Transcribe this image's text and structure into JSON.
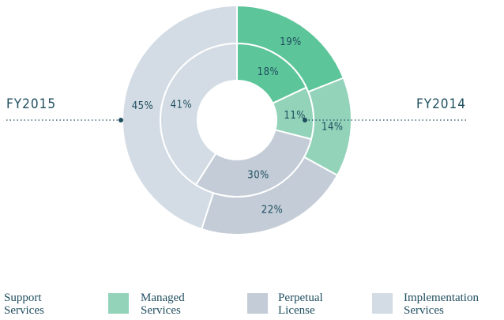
{
  "chart_data": {
    "type": "donut",
    "categories": [
      "Support Services",
      "Managed Services",
      "Perpetual License",
      "Implementation Services"
    ],
    "colors": [
      "#5dc59a",
      "#93d3b9",
      "#c3ccd7",
      "#d3dce4"
    ],
    "series": [
      {
        "name": "FY2015",
        "values": [
          19,
          14,
          22,
          45
        ],
        "value_labels": [
          "19%",
          "14%",
          "22%",
          "45%"
        ]
      },
      {
        "name": "FY2014",
        "values": [
          18,
          11,
          30,
          41
        ],
        "value_labels": [
          "18%",
          "11%",
          "30%",
          "41%"
        ]
      }
    ]
  }
}
